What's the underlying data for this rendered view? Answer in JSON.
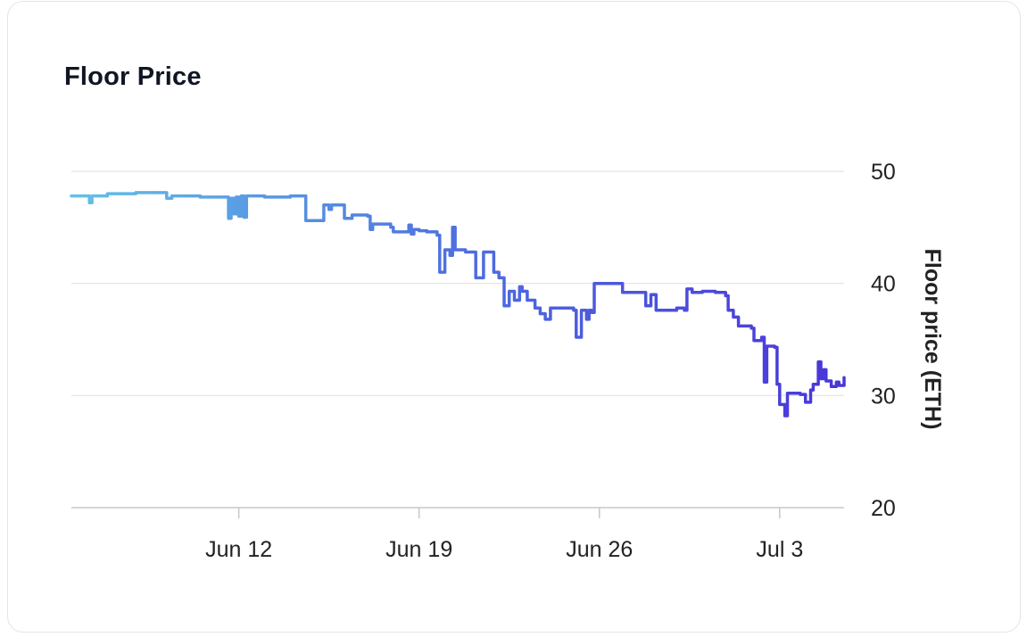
{
  "card": {
    "title": "Floor Price"
  },
  "colors": {
    "line_start": "#62c2e6",
    "line_mid": "#4e6fe0",
    "line_end": "#4a35d8",
    "grid": "#e3e3e3",
    "axis": "#c8c8c8"
  },
  "chart_data": {
    "type": "line",
    "title": "Floor Price",
    "xlabel": "",
    "ylabel": "Floor price (ETH)",
    "x_ticks": [
      {
        "label": "Jun 12",
        "day": 12.0
      },
      {
        "label": "Jun 19",
        "day": 19.0
      },
      {
        "label": "Jun 26",
        "day": 26.0
      },
      {
        "label": "Jul 3",
        "day": 33.0
      }
    ],
    "y_ticks": [
      "20",
      "30",
      "40",
      "50"
    ],
    "xlim": [
      5.5,
      35.5
    ],
    "ylim": [
      20,
      50
    ],
    "grid": true,
    "legend": "none",
    "series": [
      {
        "step": true,
        "points": [
          [
            5.5,
            47.8
          ],
          [
            6.0,
            47.8
          ],
          [
            6.2,
            47.2
          ],
          [
            6.3,
            47.8
          ],
          [
            6.5,
            47.8
          ],
          [
            6.9,
            48.0
          ],
          [
            8.0,
            48.1
          ],
          [
            9.0,
            48.1
          ],
          [
            9.2,
            47.6
          ],
          [
            9.4,
            47.8
          ],
          [
            10.5,
            47.7
          ],
          [
            11.5,
            47.7
          ],
          [
            11.6,
            45.8
          ],
          [
            11.7,
            47.6
          ],
          [
            11.8,
            46.2
          ],
          [
            11.9,
            47.7
          ],
          [
            12.0,
            46.0
          ],
          [
            12.1,
            47.8
          ],
          [
            12.2,
            45.9
          ],
          [
            12.3,
            47.8
          ],
          [
            13.0,
            47.7
          ],
          [
            14.0,
            47.8
          ],
          [
            14.5,
            47.8
          ],
          [
            14.6,
            45.6
          ],
          [
            15.2,
            45.6
          ],
          [
            15.3,
            47.0
          ],
          [
            15.5,
            46.6
          ],
          [
            15.6,
            47.0
          ],
          [
            16.0,
            47.0
          ],
          [
            16.1,
            45.8
          ],
          [
            16.3,
            45.8
          ],
          [
            16.4,
            46.1
          ],
          [
            17.0,
            46.0
          ],
          [
            17.1,
            44.8
          ],
          [
            17.2,
            45.3
          ],
          [
            17.9,
            45.0
          ],
          [
            18.0,
            44.6
          ],
          [
            18.5,
            44.6
          ],
          [
            18.6,
            45.2
          ],
          [
            18.7,
            44.4
          ],
          [
            18.8,
            44.8
          ],
          [
            19.0,
            44.7
          ],
          [
            19.3,
            44.6
          ],
          [
            19.5,
            44.6
          ],
          [
            19.7,
            44.3
          ],
          [
            19.8,
            41.0
          ],
          [
            20.0,
            43.0
          ],
          [
            20.2,
            42.5
          ],
          [
            20.3,
            45.0
          ],
          [
            20.4,
            43.0
          ],
          [
            20.6,
            43.0
          ],
          [
            20.8,
            42.8
          ],
          [
            21.0,
            42.8
          ],
          [
            21.2,
            40.5
          ],
          [
            21.4,
            40.5
          ],
          [
            21.5,
            42.8
          ],
          [
            21.8,
            42.8
          ],
          [
            21.9,
            41.0
          ],
          [
            22.1,
            40.5
          ],
          [
            22.3,
            38.0
          ],
          [
            22.5,
            39.3
          ],
          [
            22.7,
            38.5
          ],
          [
            22.9,
            39.7
          ],
          [
            23.0,
            39.3
          ],
          [
            23.2,
            38.5
          ],
          [
            23.5,
            37.8
          ],
          [
            23.7,
            37.3
          ],
          [
            23.9,
            36.8
          ],
          [
            24.1,
            37.8
          ],
          [
            25.0,
            37.6
          ],
          [
            25.1,
            35.2
          ],
          [
            25.3,
            37.6
          ],
          [
            25.5,
            36.8
          ],
          [
            25.6,
            37.6
          ],
          [
            25.7,
            37.4
          ],
          [
            25.8,
            40.0
          ],
          [
            26.8,
            40.0
          ],
          [
            26.9,
            39.2
          ],
          [
            27.7,
            39.2
          ],
          [
            27.8,
            38.0
          ],
          [
            28.0,
            39.0
          ],
          [
            28.2,
            37.6
          ],
          [
            29.0,
            37.8
          ],
          [
            29.3,
            37.6
          ],
          [
            29.4,
            39.5
          ],
          [
            29.6,
            39.2
          ],
          [
            30.0,
            39.3
          ],
          [
            30.5,
            39.2
          ],
          [
            30.9,
            38.9
          ],
          [
            31.0,
            37.6
          ],
          [
            31.2,
            37.0
          ],
          [
            31.4,
            36.2
          ],
          [
            31.9,
            36.0
          ],
          [
            32.0,
            34.9
          ],
          [
            32.3,
            35.2
          ],
          [
            32.4,
            31.2
          ],
          [
            32.5,
            34.4
          ],
          [
            32.8,
            34.3
          ],
          [
            32.9,
            31.0
          ],
          [
            33.0,
            29.2
          ],
          [
            33.2,
            28.2
          ],
          [
            33.3,
            30.2
          ],
          [
            33.5,
            30.2
          ],
          [
            33.8,
            30.1
          ],
          [
            34.0,
            29.4
          ],
          [
            34.2,
            30.5
          ],
          [
            34.3,
            31.0
          ],
          [
            34.5,
            33.0
          ],
          [
            34.6,
            31.5
          ],
          [
            34.7,
            32.3
          ],
          [
            34.8,
            31.3
          ],
          [
            35.0,
            30.8
          ],
          [
            35.2,
            31.2
          ],
          [
            35.3,
            30.9
          ],
          [
            35.5,
            31.6
          ]
        ]
      }
    ]
  }
}
